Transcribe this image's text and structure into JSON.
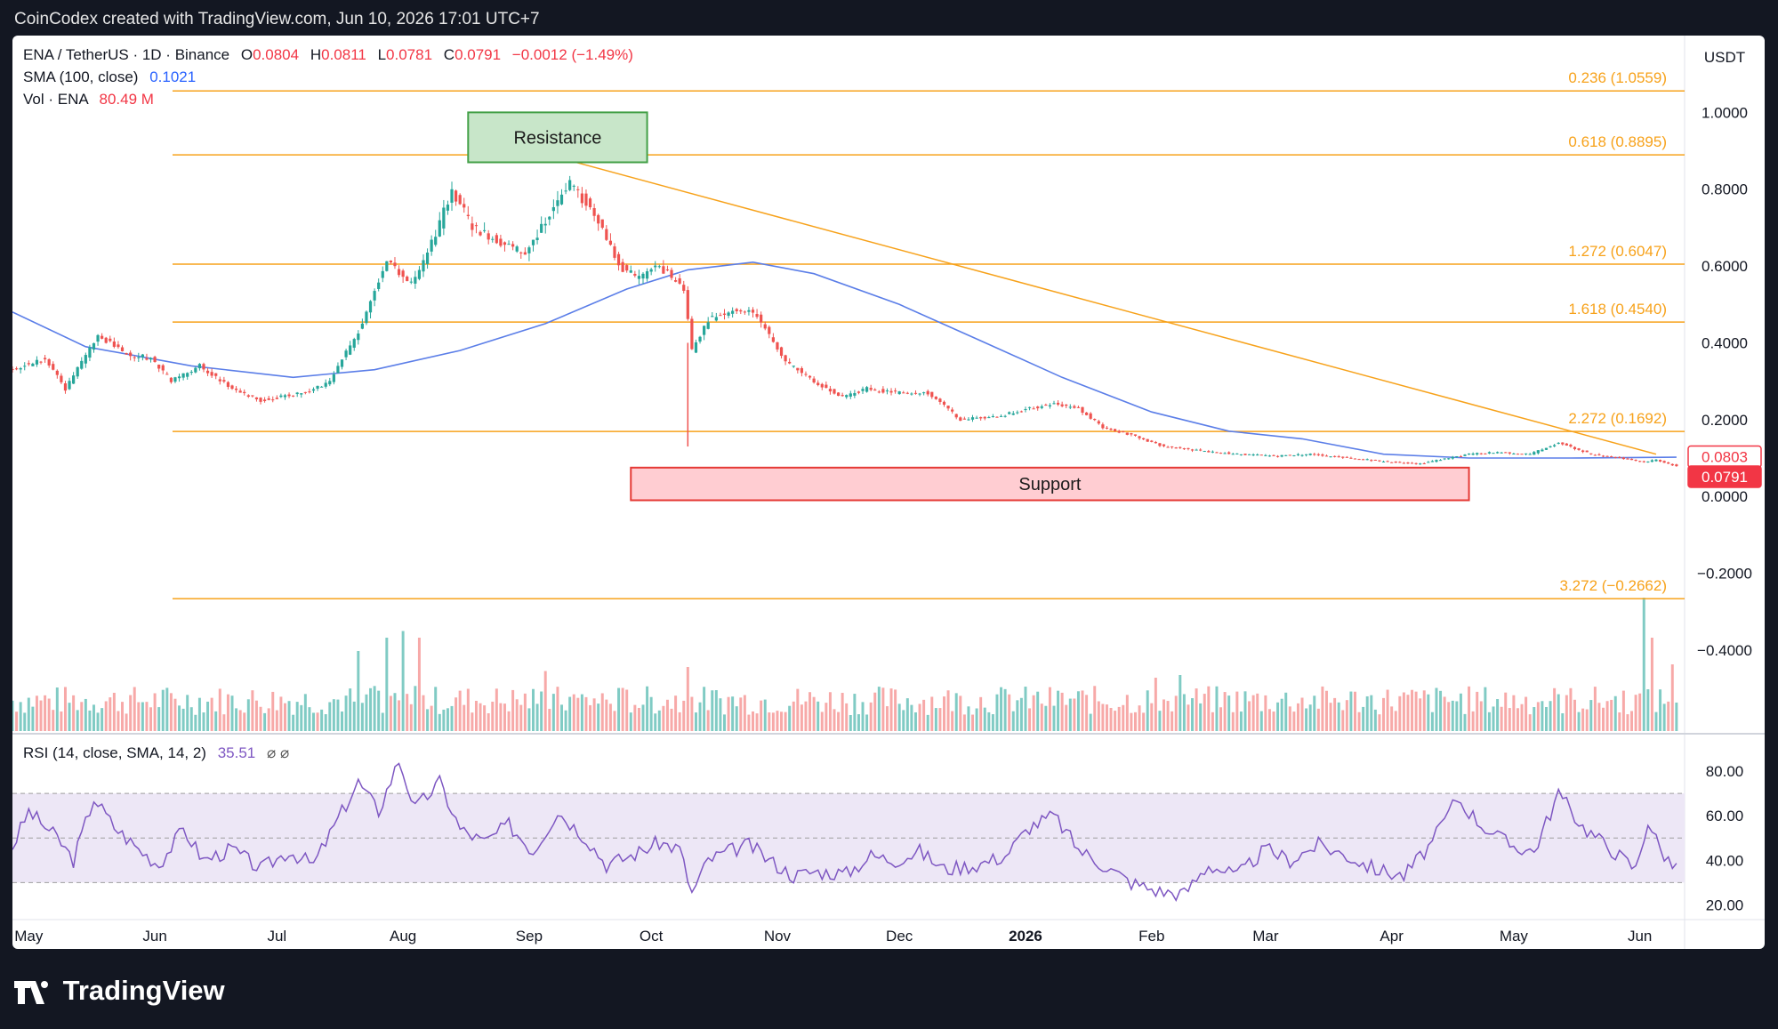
{
  "header": {
    "credit": "CoinCodex created with TradingView.com, Jun 10, 2026 17:01 UTC+7"
  },
  "footer": {
    "brand": "TradingView"
  },
  "legend": {
    "symbol": "ENA / TetherUS · 1D · Binance",
    "open_label": "O",
    "open": "0.0804",
    "high_label": "H",
    "high": "0.0811",
    "low_label": "L",
    "low": "0.0781",
    "close_label": "C",
    "close": "0.0791",
    "change": "−0.0012 (−1.49%)",
    "sma_label": "SMA (100, close)",
    "sma_value": "0.1021",
    "vol_label": "Vol · ENA",
    "vol_value": "80.49 M"
  },
  "rsi_legend": {
    "label": "RSI (14, close, SMA, 14, 2)",
    "value": "35.51",
    "icons": "⌀ ⌀"
  },
  "colors": {
    "up": "#26a69a",
    "down": "#ef5350",
    "sma": "#5b7ee8",
    "fib": "#f7a21b",
    "rsi": "#7e57c2",
    "resistance_fill": "#c8e6c9",
    "resistance_border": "#43a047",
    "support_fill": "#ffcdd2",
    "support_border": "#e53935"
  },
  "chart_data": [
    {
      "type": "candlestick",
      "title": "ENA / TetherUS · 1D · Binance",
      "currency": "USDT",
      "y_ticks": [
        "1.0000",
        "0.8000",
        "0.6000",
        "0.4000",
        "0.2000",
        "0.0000",
        "−0.2000",
        "−0.4000"
      ],
      "y_tick_values": [
        1.0,
        0.8,
        0.6,
        0.4,
        0.2,
        0.0,
        -0.2,
        -0.4
      ],
      "ylim": [
        -0.56,
        1.2
      ],
      "x_ticks": [
        "May",
        "Jun",
        "Jul",
        "Aug",
        "Sep",
        "Oct",
        "Nov",
        "Dec",
        "2026",
        "Feb",
        "Mar",
        "Apr",
        "May",
        "Jun"
      ],
      "xlim": [
        "2025-04-27",
        "2026-06-12"
      ],
      "price_path": [
        [
          "2025-04-27",
          0.33
        ],
        [
          "2025-05-05",
          0.36
        ],
        [
          "2025-05-10",
          0.28
        ],
        [
          "2025-05-18",
          0.42
        ],
        [
          "2025-05-25",
          0.37
        ],
        [
          "2025-05-31",
          0.36
        ],
        [
          "2025-06-05",
          0.3
        ],
        [
          "2025-06-12",
          0.34
        ],
        [
          "2025-06-20",
          0.28
        ],
        [
          "2025-06-27",
          0.25
        ],
        [
          "2025-07-08",
          0.27
        ],
        [
          "2025-07-14",
          0.3
        ],
        [
          "2025-07-22",
          0.45
        ],
        [
          "2025-07-28",
          0.62
        ],
        [
          "2025-08-03",
          0.55
        ],
        [
          "2025-08-09",
          0.68
        ],
        [
          "2025-08-13",
          0.8
        ],
        [
          "2025-08-18",
          0.7
        ],
        [
          "2025-08-25",
          0.66
        ],
        [
          "2025-08-31",
          0.63
        ],
        [
          "2025-09-05",
          0.72
        ],
        [
          "2025-09-11",
          0.82
        ],
        [
          "2025-09-18",
          0.72
        ],
        [
          "2025-09-23",
          0.6
        ],
        [
          "2025-09-28",
          0.57
        ],
        [
          "2025-10-03",
          0.6
        ],
        [
          "2025-10-09",
          0.54
        ],
        [
          "2025-10-11",
          0.38
        ],
        [
          "2025-10-15",
          0.46
        ],
        [
          "2025-10-22",
          0.49
        ],
        [
          "2025-10-27",
          0.47
        ],
        [
          "2025-11-03",
          0.35
        ],
        [
          "2025-11-10",
          0.3
        ],
        [
          "2025-11-17",
          0.26
        ],
        [
          "2025-11-23",
          0.28
        ],
        [
          "2025-11-30",
          0.27
        ],
        [
          "2025-12-08",
          0.27
        ],
        [
          "2025-12-16",
          0.2
        ],
        [
          "2025-12-26",
          0.21
        ],
        [
          "2026-01-02",
          0.23
        ],
        [
          "2026-01-08",
          0.24
        ],
        [
          "2026-01-14",
          0.23
        ],
        [
          "2026-01-20",
          0.18
        ],
        [
          "2026-01-27",
          0.16
        ],
        [
          "2026-02-04",
          0.13
        ],
        [
          "2026-02-12",
          0.12
        ],
        [
          "2026-02-22",
          0.11
        ],
        [
          "2026-03-03",
          0.105
        ],
        [
          "2026-03-12",
          0.11
        ],
        [
          "2026-03-22",
          0.1
        ],
        [
          "2026-03-31",
          0.09
        ],
        [
          "2026-04-08",
          0.085
        ],
        [
          "2026-04-15",
          0.1
        ],
        [
          "2026-04-20",
          0.11
        ],
        [
          "2026-04-27",
          0.115
        ],
        [
          "2026-05-05",
          0.11
        ],
        [
          "2026-05-12",
          0.14
        ],
        [
          "2026-05-20",
          0.11
        ],
        [
          "2026-05-27",
          0.1
        ],
        [
          "2026-06-02",
          0.09
        ],
        [
          "2026-06-05",
          0.095
        ],
        [
          "2026-06-10",
          0.0791
        ]
      ],
      "wick_low": {
        "date": "2025-10-10",
        "value": 0.13
      },
      "sma_100": [
        [
          "2025-04-27",
          0.48
        ],
        [
          "2025-05-15",
          0.39
        ],
        [
          "2025-06-10",
          0.34
        ],
        [
          "2025-07-05",
          0.31
        ],
        [
          "2025-07-25",
          0.33
        ],
        [
          "2025-08-15",
          0.38
        ],
        [
          "2025-09-05",
          0.45
        ],
        [
          "2025-09-25",
          0.54
        ],
        [
          "2025-10-10",
          0.59
        ],
        [
          "2025-10-26",
          0.61
        ],
        [
          "2025-11-10",
          0.58
        ],
        [
          "2025-12-01",
          0.5
        ],
        [
          "2025-12-20",
          0.41
        ],
        [
          "2026-01-10",
          0.31
        ],
        [
          "2026-02-01",
          0.22
        ],
        [
          "2026-02-20",
          0.17
        ],
        [
          "2026-03-10",
          0.15
        ],
        [
          "2026-03-30",
          0.11
        ],
        [
          "2026-04-20",
          0.1
        ],
        [
          "2026-05-15",
          0.1
        ],
        [
          "2026-06-10",
          0.1021
        ]
      ],
      "trendline": [
        [
          "2025-08-26",
          0.92
        ],
        [
          "2026-06-05",
          0.11
        ]
      ],
      "fib_levels": [
        {
          "label": "0.236 (1.0559)",
          "value": 1.0559
        },
        {
          "label": "0.618 (0.8895)",
          "value": 0.8895
        },
        {
          "label": "1.272 (0.6047)",
          "value": 0.6047
        },
        {
          "label": "1.618 (0.4540)",
          "value": 0.454
        },
        {
          "label": "2.272 (0.1692)",
          "value": 0.1692
        },
        {
          "label": "3.272 (−0.2662)",
          "value": -0.2662
        }
      ],
      "resistance": {
        "label": "Resistance",
        "from": "2025-08-17",
        "to": "2025-09-30",
        "low": 0.87,
        "high": 1.0
      },
      "support": {
        "label": "Support",
        "from": "2025-09-26",
        "to": "2026-04-20",
        "low": -0.01,
        "high": 0.075
      },
      "price_tags": [
        {
          "label": "0.0803",
          "value": 0.0803,
          "color": "#f23645",
          "outlined": true
        },
        {
          "label": "0.0791",
          "value": 0.0791,
          "color": "#f23645",
          "outlined": false
        }
      ]
    },
    {
      "type": "bar",
      "title": "Vol · ENA",
      "volume_spikes": [
        [
          "2025-07-21",
          0.6
        ],
        [
          "2025-07-28",
          0.7
        ],
        [
          "2025-08-01",
          0.75
        ],
        [
          "2025-08-05",
          0.7
        ],
        [
          "2025-09-05",
          0.45
        ],
        [
          "2025-10-10",
          0.48
        ],
        [
          "2026-02-02",
          0.4
        ],
        [
          "2026-02-08",
          0.42
        ],
        [
          "2026-06-02",
          1.0
        ],
        [
          "2026-06-04",
          0.7
        ],
        [
          "2026-06-09",
          0.5
        ]
      ]
    },
    {
      "type": "line",
      "title": "RSI (14, close, SMA, 14, 2)",
      "y_ticks": [
        "80.00",
        "60.00",
        "40.00",
        "20.00"
      ],
      "y_tick_values": [
        80,
        60,
        40,
        20
      ],
      "ylim": [
        15,
        90
      ],
      "band": [
        30,
        70
      ],
      "midline": 50,
      "rsi": [
        [
          "2025-04-27",
          46
        ],
        [
          "2025-05-01",
          62
        ],
        [
          "2025-05-08",
          50
        ],
        [
          "2025-05-12",
          40
        ],
        [
          "2025-05-17",
          68
        ],
        [
          "2025-05-22",
          55
        ],
        [
          "2025-05-28",
          45
        ],
        [
          "2025-06-02",
          38
        ],
        [
          "2025-06-08",
          54
        ],
        [
          "2025-06-13",
          40
        ],
        [
          "2025-06-20",
          45
        ],
        [
          "2025-06-27",
          36
        ],
        [
          "2025-07-04",
          44
        ],
        [
          "2025-07-10",
          38
        ],
        [
          "2025-07-15",
          55
        ],
        [
          "2025-07-21",
          75
        ],
        [
          "2025-07-26",
          62
        ],
        [
          "2025-07-31",
          85
        ],
        [
          "2025-08-04",
          63
        ],
        [
          "2025-08-10",
          75
        ],
        [
          "2025-08-15",
          54
        ],
        [
          "2025-08-21",
          48
        ],
        [
          "2025-08-27",
          56
        ],
        [
          "2025-09-02",
          44
        ],
        [
          "2025-09-08",
          62
        ],
        [
          "2025-09-15",
          50
        ],
        [
          "2025-09-20",
          38
        ],
        [
          "2025-09-26",
          42
        ],
        [
          "2025-10-03",
          48
        ],
        [
          "2025-10-08",
          45
        ],
        [
          "2025-10-11",
          25
        ],
        [
          "2025-10-15",
          40
        ],
        [
          "2025-10-20",
          44
        ],
        [
          "2025-10-25",
          47
        ],
        [
          "2025-10-30",
          40
        ],
        [
          "2025-11-05",
          33
        ],
        [
          "2025-11-10",
          35
        ],
        [
          "2025-11-18",
          34
        ],
        [
          "2025-11-24",
          42
        ],
        [
          "2025-11-30",
          40
        ],
        [
          "2025-12-06",
          44
        ],
        [
          "2025-12-12",
          36
        ],
        [
          "2025-12-20",
          38
        ],
        [
          "2025-12-27",
          42
        ],
        [
          "2026-01-02",
          55
        ],
        [
          "2026-01-08",
          60
        ],
        [
          "2026-01-14",
          45
        ],
        [
          "2026-01-20",
          38
        ],
        [
          "2026-01-27",
          30
        ],
        [
          "2026-02-03",
          26
        ],
        [
          "2026-02-09",
          25
        ],
        [
          "2026-02-15",
          38
        ],
        [
          "2026-02-22",
          33
        ],
        [
          "2026-03-01",
          45
        ],
        [
          "2026-03-07",
          40
        ],
        [
          "2026-03-14",
          47
        ],
        [
          "2026-03-21",
          42
        ],
        [
          "2026-03-28",
          36
        ],
        [
          "2026-04-04",
          33
        ],
        [
          "2026-04-11",
          48
        ],
        [
          "2026-04-17",
          68
        ],
        [
          "2026-04-23",
          56
        ],
        [
          "2026-04-30",
          47
        ],
        [
          "2026-05-06",
          44
        ],
        [
          "2026-05-12",
          70
        ],
        [
          "2026-05-18",
          55
        ],
        [
          "2026-05-25",
          45
        ],
        [
          "2026-05-31",
          36
        ],
        [
          "2026-06-03",
          58
        ],
        [
          "2026-06-06",
          45
        ],
        [
          "2026-06-10",
          35.5
        ]
      ]
    }
  ]
}
